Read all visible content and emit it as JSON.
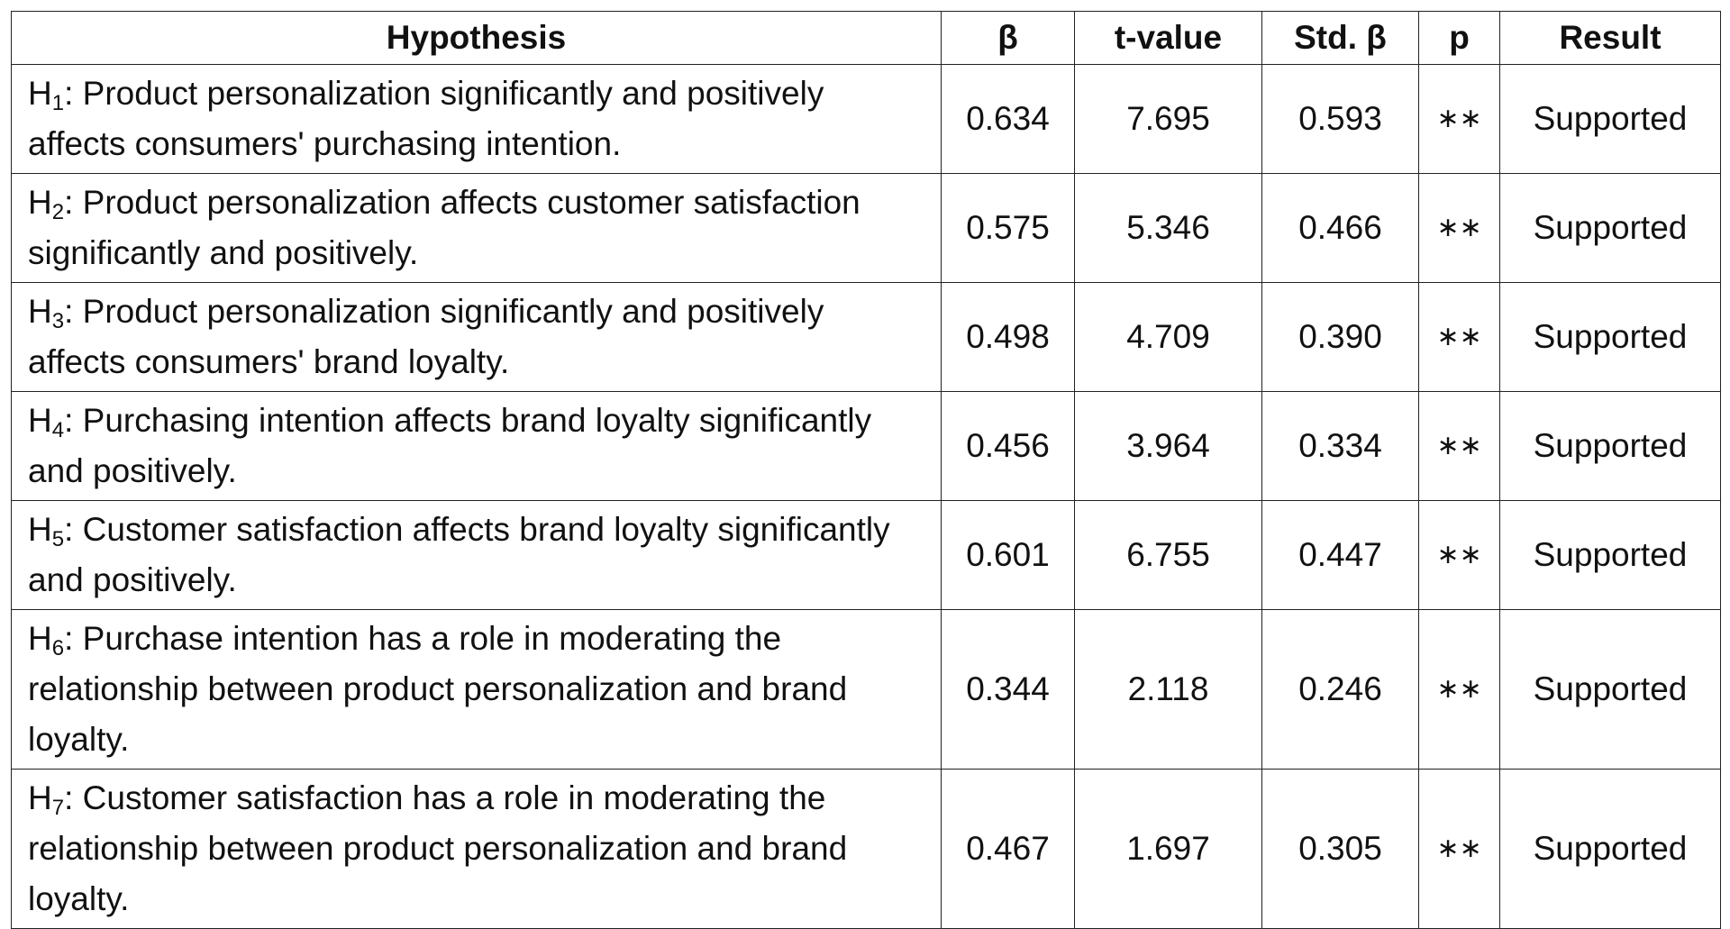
{
  "table": {
    "headers": [
      "Hypothesis",
      "β",
      "t-value",
      "Std. β",
      "p",
      "Result"
    ],
    "rows": [
      {
        "id_prefix": "H",
        "id_sub": "1",
        "text": ": Product personalization significantly and positively affects consumers' purchasing intention.",
        "beta": "0.634",
        "t_value": "7.695",
        "std_beta": "0.593",
        "p": "∗∗",
        "result": "Supported"
      },
      {
        "id_prefix": "H",
        "id_sub": "2",
        "text": ": Product personalization affects customer satisfaction significantly and positively.",
        "beta": "0.575",
        "t_value": "5.346",
        "std_beta": "0.466",
        "p": "∗∗",
        "result": "Supported"
      },
      {
        "id_prefix": "H",
        "id_sub": "3",
        "text": ": Product personalization significantly and positively affects consumers' brand loyalty.",
        "beta": "0.498",
        "t_value": "4.709",
        "std_beta": "0.390",
        "p": "∗∗",
        "result": "Supported"
      },
      {
        "id_prefix": "H",
        "id_sub": "4",
        "text": ": Purchasing intention affects brand loyalty significantly and positively.",
        "beta": "0.456",
        "t_value": "3.964",
        "std_beta": "0.334",
        "p": "∗∗",
        "result": "Supported"
      },
      {
        "id_prefix": "H",
        "id_sub": "5",
        "text": ": Customer satisfaction affects brand loyalty significantly and positively.",
        "beta": "0.601",
        "t_value": "6.755",
        "std_beta": "0.447",
        "p": "∗∗",
        "result": "Supported"
      },
      {
        "id_prefix": "H",
        "id_sub": "6",
        "text": ": Purchase intention has a role in moderating the relationship between product personalization and brand loyalty.",
        "beta": "0.344",
        "t_value": "2.118",
        "std_beta": "0.246",
        "p": "∗∗",
        "result": "Supported"
      },
      {
        "id_prefix": "H",
        "id_sub": "7",
        "text": ": Customer satisfaction has a role in moderating the relationship between product personalization and brand loyalty.",
        "beta": "0.467",
        "t_value": "1.697",
        "std_beta": "0.305",
        "p": "∗∗",
        "result": "Supported"
      }
    ]
  }
}
